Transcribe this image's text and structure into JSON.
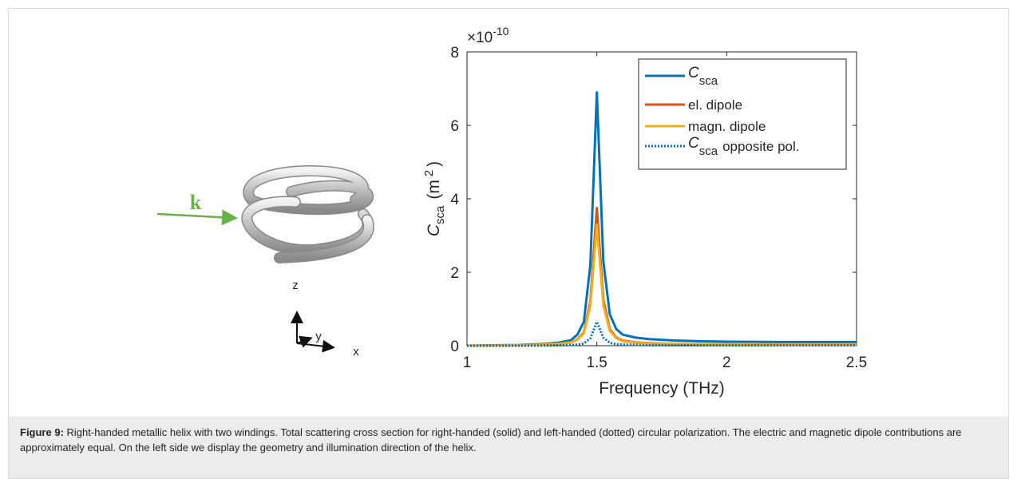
{
  "chart_data": {
    "type": "line",
    "xlabel": "Frequency (THz)",
    "ylabel": {
      "symbol": "C",
      "subscript": "sca",
      "unit_open": "(m",
      "unit_sup": "2",
      "unit_close": ")"
    },
    "y_exponent": {
      "base": "×10",
      "power": "-10"
    },
    "x": [
      1,
      1.1,
      1.2,
      1.3,
      1.35,
      1.4,
      1.425,
      1.45,
      1.475,
      1.5,
      1.525,
      1.55,
      1.575,
      1.6,
      1.65,
      1.7,
      1.8,
      1.9,
      2.0,
      2.2,
      2.5
    ],
    "series": [
      {
        "name": "C",
        "name_sub": "sca",
        "color": "#0072bd",
        "style": "solid",
        "values": [
          0,
          0.01,
          0.02,
          0.05,
          0.08,
          0.15,
          0.3,
          0.65,
          2.2,
          6.9,
          2.3,
          0.85,
          0.45,
          0.3,
          0.22,
          0.18,
          0.14,
          0.12,
          0.11,
          0.1,
          0.1
        ]
      },
      {
        "name": "el. dipole",
        "color": "#d95319",
        "style": "solid",
        "values": [
          0,
          0.005,
          0.01,
          0.03,
          0.05,
          0.09,
          0.17,
          0.36,
          1.2,
          3.75,
          1.25,
          0.45,
          0.22,
          0.14,
          0.09,
          0.07,
          0.05,
          0.04,
          0.035,
          0.03,
          0.03
        ]
      },
      {
        "name": "magn. dipole",
        "color": "#edb120",
        "style": "solid",
        "values": [
          0,
          0.005,
          0.01,
          0.03,
          0.05,
          0.09,
          0.16,
          0.33,
          1.1,
          3.3,
          1.1,
          0.4,
          0.2,
          0.12,
          0.08,
          0.06,
          0.05,
          0.04,
          0.035,
          0.03,
          0.03
        ]
      },
      {
        "name": "C",
        "name_sub": "sca",
        "name_after": "opposite pol.",
        "color": "#0072bd",
        "style": "dotted",
        "values": [
          0,
          0,
          0,
          0.005,
          0.01,
          0.02,
          0.03,
          0.06,
          0.2,
          0.65,
          0.22,
          0.08,
          0.04,
          0.03,
          0.02,
          0.015,
          0.01,
          0.01,
          0.01,
          0.01,
          0.01
        ]
      }
    ],
    "xlim": [
      1,
      2.5
    ],
    "xticks": [
      1,
      1.5,
      2,
      2.5
    ],
    "ylim": [
      0,
      8
    ],
    "yticks": [
      0,
      2,
      4,
      6,
      8
    ],
    "legend": "upper right",
    "grid": false
  },
  "diagram": {
    "wave_vector": "k",
    "axes": [
      "z",
      "y",
      "x"
    ]
  },
  "caption": {
    "label": "Figure 9:",
    "text": "Right-handed metallic helix with two windings. Total scattering cross section for right-handed (solid) and left-handed (dotted) circular polarization. The electric and magnetic dipole contributions are approximately equal. On the left side we display the geometry and illumination direction of the helix."
  }
}
